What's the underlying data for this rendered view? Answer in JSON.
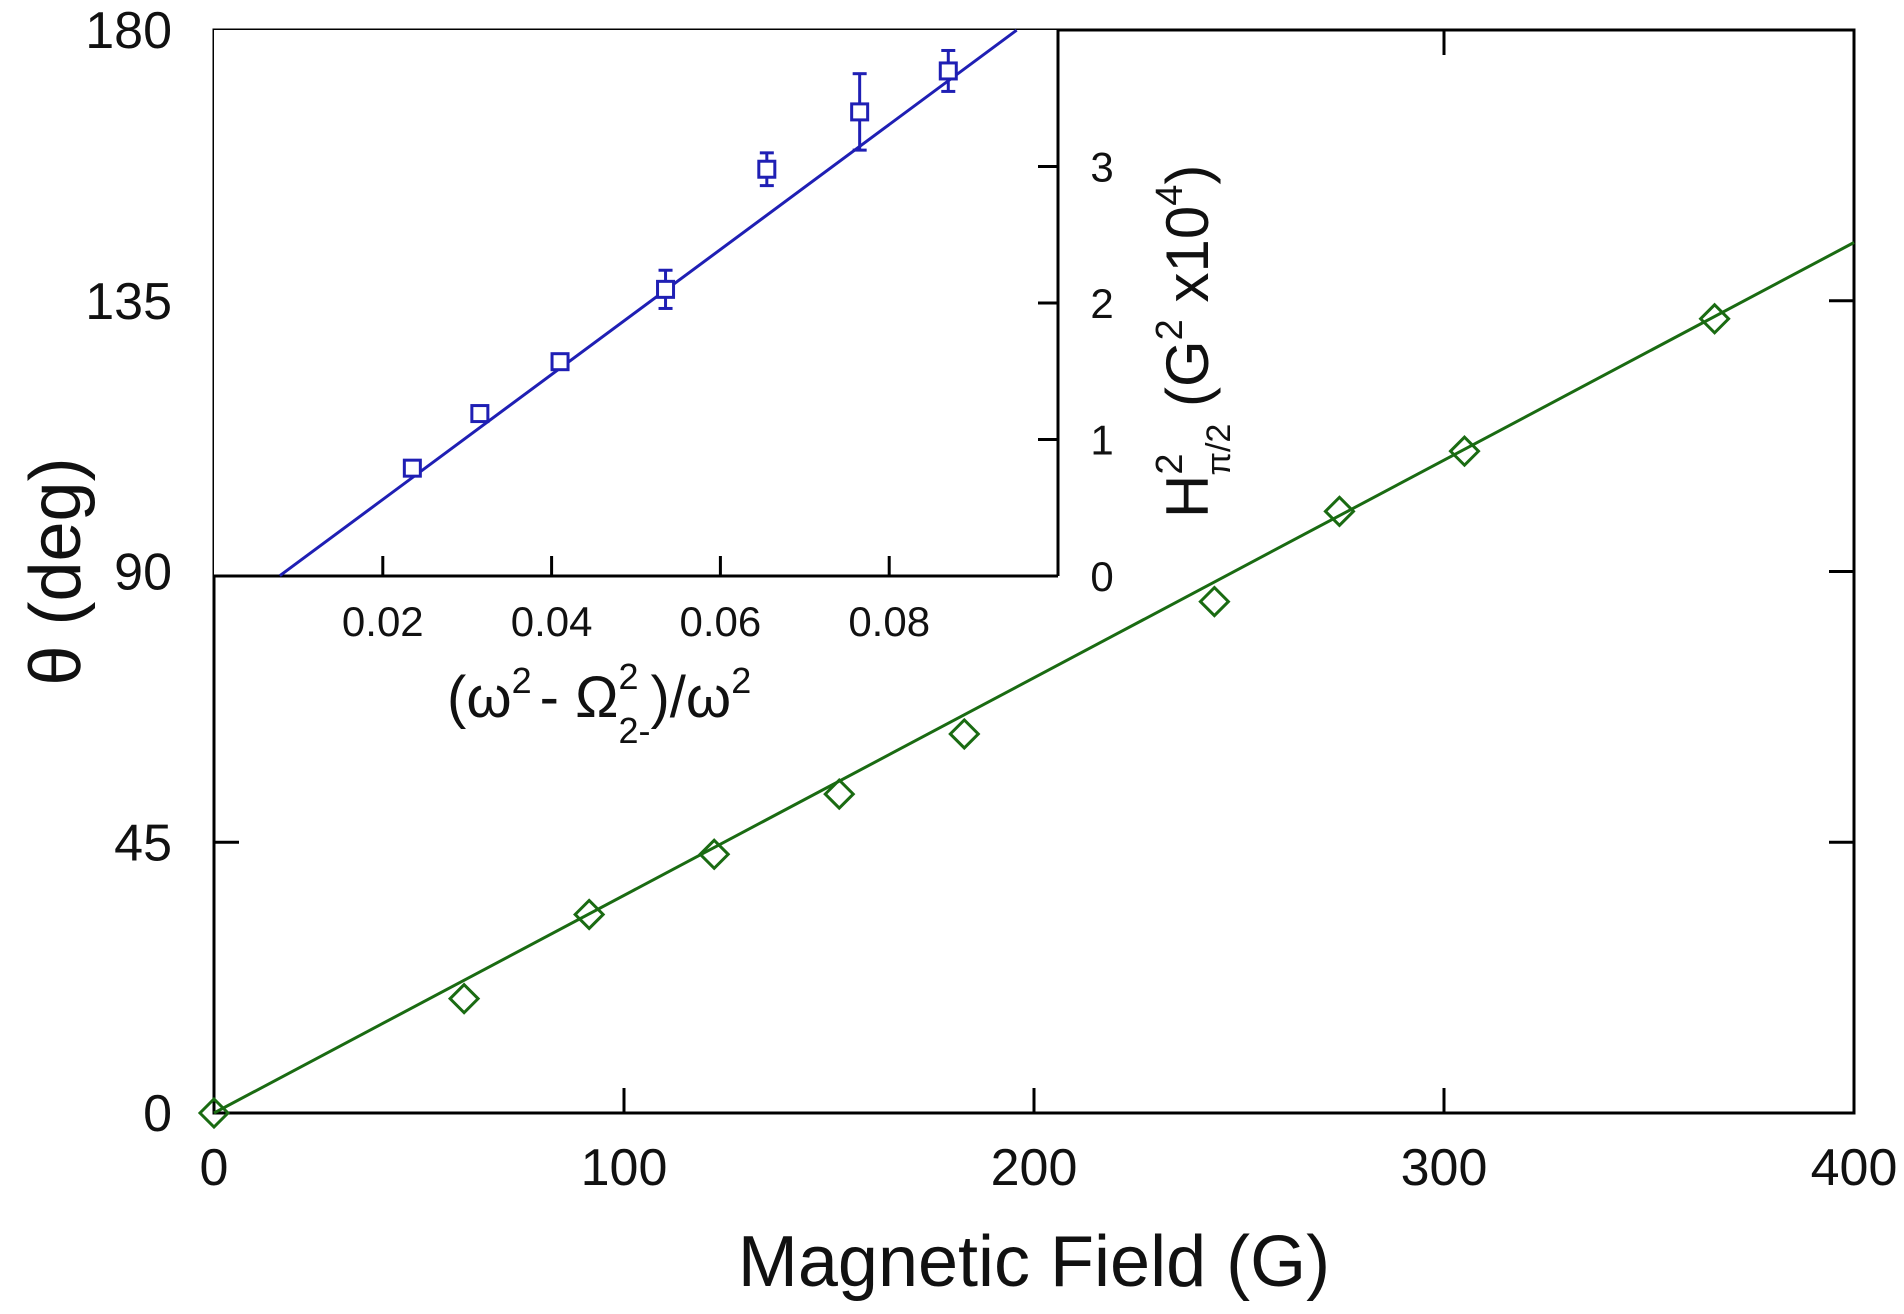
{
  "chart_data": [
    {
      "type": "scatter",
      "name": "main",
      "xlabel": "Magnetic Field (G)",
      "ylabel": "θ (deg)",
      "xlim": [
        0,
        400
      ],
      "ylim": [
        0,
        180
      ],
      "xticks": [
        0,
        100,
        200,
        300,
        400
      ],
      "yticks": [
        0,
        45,
        90,
        135,
        180
      ],
      "grid": false,
      "series": [
        {
          "name": "data",
          "marker": "diamond",
          "color": "#1a6b12",
          "x": [
            0,
            61,
            91.5,
            122,
            152.5,
            183,
            244,
            274.5,
            305,
            366
          ],
          "y": [
            0,
            19,
            33,
            43,
            53,
            63,
            85,
            100,
            110,
            132
          ]
        }
      ],
      "fit": {
        "color": "#1a6b12",
        "slope": 0.3617,
        "intercept": 0,
        "x_range": [
          0,
          400
        ]
      }
    },
    {
      "type": "scatter",
      "name": "inset",
      "xlabel_parts": {
        "open": "(ω",
        "sup_a": "2",
        "mid": "- Ω",
        "sup_b": "2",
        "sub_b": "2-",
        "close": ")/ω",
        "sup_c": "2"
      },
      "ylabel_parts": {
        "main": "H",
        "sup": "2",
        "sub": "π/2",
        "rest": " (G",
        "sup2": "2",
        "mid": " x10",
        "sup3": "4",
        "close": ")"
      },
      "xlim": [
        0,
        0.1
      ],
      "ylim": [
        0,
        4
      ],
      "xticks": [
        "0.02",
        "0.04",
        "0.06",
        "0.08"
      ],
      "yticks": [
        "0",
        "1",
        "2",
        "3"
      ],
      "grid": false,
      "series": [
        {
          "name": "data",
          "marker": "square",
          "color": "#1f1fb4",
          "x": [
            0.0235,
            0.0315,
            0.041,
            0.0535,
            0.0655,
            0.0765,
            0.087
          ],
          "y": [
            0.79,
            1.19,
            1.57,
            2.1,
            2.98,
            3.4,
            3.7
          ],
          "err": [
            0.05,
            0.05,
            0.05,
            0.14,
            0.12,
            0.28,
            0.15
          ]
        }
      ],
      "fit": {
        "color": "#1f1fb4",
        "slope": 45.78,
        "intercept": -0.355,
        "x_range": [
          0.0078,
          0.0951
        ]
      }
    }
  ]
}
